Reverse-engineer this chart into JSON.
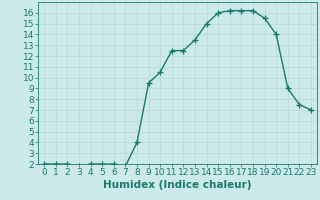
{
  "x": [
    0,
    1,
    2,
    3,
    4,
    5,
    6,
    7,
    8,
    9,
    10,
    11,
    12,
    13,
    14,
    15,
    16,
    17,
    18,
    19,
    20,
    21,
    22,
    23
  ],
  "y": [
    2,
    2,
    2,
    1.8,
    2,
    2,
    2,
    1.8,
    4,
    9.5,
    10.5,
    12.5,
    12.5,
    13.5,
    15,
    16,
    16.2,
    16.2,
    16.2,
    15.5,
    14,
    9,
    7.5,
    7
  ],
  "line_color": "#1a7a6e",
  "marker": "+",
  "marker_size": 4,
  "bg_color": "#cceaea",
  "grid_color_major": "#b8d8d4",
  "grid_color_minor": "#d4eeec",
  "xlabel": "Humidex (Indice chaleur)",
  "xlim": [
    -0.5,
    23.5
  ],
  "ylim": [
    2,
    17
  ],
  "yticks": [
    2,
    3,
    4,
    5,
    6,
    7,
    8,
    9,
    10,
    11,
    12,
    13,
    14,
    15,
    16
  ],
  "xticks": [
    0,
    1,
    2,
    3,
    4,
    5,
    6,
    7,
    8,
    9,
    10,
    11,
    12,
    13,
    14,
    15,
    16,
    17,
    18,
    19,
    20,
    21,
    22,
    23
  ],
  "xlabel_fontsize": 7.5,
  "tick_fontsize": 6.5,
  "line_width": 1.0
}
